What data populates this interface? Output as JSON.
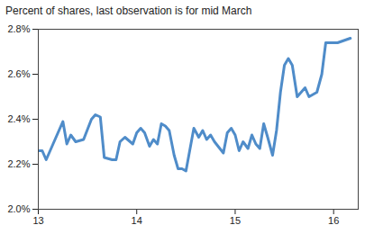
{
  "chart_data": {
    "type": "line",
    "subtitle": "Percent of shares, last observation is for mid March",
    "x": [
      13.0,
      13.04,
      13.08,
      13.17,
      13.25,
      13.29,
      13.33,
      13.38,
      13.46,
      13.54,
      13.58,
      13.63,
      13.67,
      13.75,
      13.79,
      13.83,
      13.88,
      13.96,
      14.0,
      14.04,
      14.08,
      14.13,
      14.17,
      14.21,
      14.25,
      14.29,
      14.33,
      14.38,
      14.42,
      14.46,
      14.5,
      14.58,
      14.63,
      14.67,
      14.71,
      14.75,
      14.79,
      14.88,
      14.92,
      14.96,
      15.0,
      15.04,
      15.08,
      15.13,
      15.17,
      15.21,
      15.25,
      15.29,
      15.33,
      15.38,
      15.42,
      15.46,
      15.5,
      15.54,
      15.58,
      15.63,
      15.67,
      15.71,
      15.75,
      15.79,
      15.83,
      15.88,
      15.92,
      15.96,
      16.04,
      16.17
    ],
    "values": [
      2.26,
      2.26,
      2.22,
      2.31,
      2.39,
      2.29,
      2.33,
      2.3,
      2.31,
      2.4,
      2.42,
      2.41,
      2.23,
      2.22,
      2.22,
      2.3,
      2.32,
      2.29,
      2.34,
      2.36,
      2.34,
      2.28,
      2.31,
      2.29,
      2.38,
      2.37,
      2.35,
      2.24,
      2.18,
      2.18,
      2.17,
      2.36,
      2.32,
      2.35,
      2.31,
      2.33,
      2.3,
      2.25,
      2.34,
      2.36,
      2.33,
      2.26,
      2.3,
      2.27,
      2.33,
      2.29,
      2.27,
      2.38,
      2.32,
      2.24,
      2.35,
      2.52,
      2.64,
      2.67,
      2.64,
      2.5,
      2.52,
      2.54,
      2.5,
      2.51,
      2.52,
      2.6,
      2.74,
      2.74,
      2.74,
      2.76
    ],
    "color": "#4f8cc9",
    "xlim": [
      13,
      16.25
    ],
    "xticks": [
      13,
      14,
      15,
      16
    ],
    "ylim": [
      2.0,
      2.8
    ],
    "yticks": [
      {
        "value": 2.0,
        "label": "2.0%"
      },
      {
        "value": 2.2,
        "label": "2.2%"
      },
      {
        "value": 2.4,
        "label": "2.4%"
      },
      {
        "value": 2.6,
        "label": "2.6%"
      },
      {
        "value": 2.8,
        "label": "2.8%"
      }
    ],
    "grid": false
  }
}
